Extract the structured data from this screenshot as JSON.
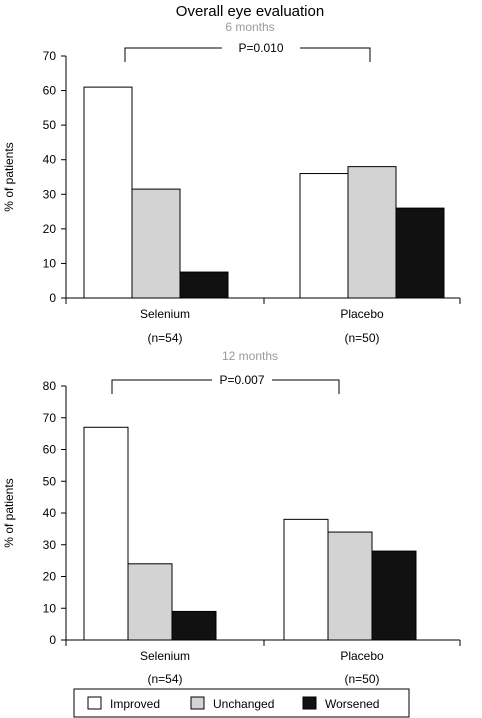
{
  "title": "Overall eye evaluation",
  "colors": {
    "improved": "#ffffff",
    "unchanged": "#d3d3d3",
    "worsened": "#111111",
    "subtitle": "#9a9a9a",
    "axis": "#000000"
  },
  "legend": {
    "placement": "bottom",
    "items": [
      "Improved",
      "Unchanged",
      "Worsened"
    ]
  },
  "chart_data": [
    {
      "type": "bar",
      "subtitle": "6 months",
      "ylabel": "% of patients",
      "ylim": [
        0,
        70
      ],
      "yticks": [
        0,
        10,
        20,
        30,
        40,
        50,
        60,
        70
      ],
      "categories": [
        "Selenium",
        "Placebo"
      ],
      "category_n": [
        "(n=54)",
        "(n=50)"
      ],
      "series": [
        {
          "name": "Improved",
          "values": [
            61,
            36
          ]
        },
        {
          "name": "Unchanged",
          "values": [
            31.5,
            38
          ]
        },
        {
          "name": "Worsened",
          "values": [
            7.5,
            26
          ]
        }
      ],
      "annotation": "P=0.010",
      "grid": false
    },
    {
      "type": "bar",
      "subtitle": "12 months",
      "ylabel": "% of patients",
      "ylim": [
        0,
        80
      ],
      "yticks": [
        0,
        10,
        20,
        30,
        40,
        50,
        60,
        70,
        80
      ],
      "categories": [
        "Selenium",
        "Placebo"
      ],
      "category_n": [
        "(n=54)",
        "(n=50)"
      ],
      "series": [
        {
          "name": "Improved",
          "values": [
            67,
            38
          ]
        },
        {
          "name": "Unchanged",
          "values": [
            24,
            34
          ]
        },
        {
          "name": "Worsened",
          "values": [
            9,
            28
          ]
        }
      ],
      "annotation": "P=0.007",
      "grid": false
    }
  ]
}
